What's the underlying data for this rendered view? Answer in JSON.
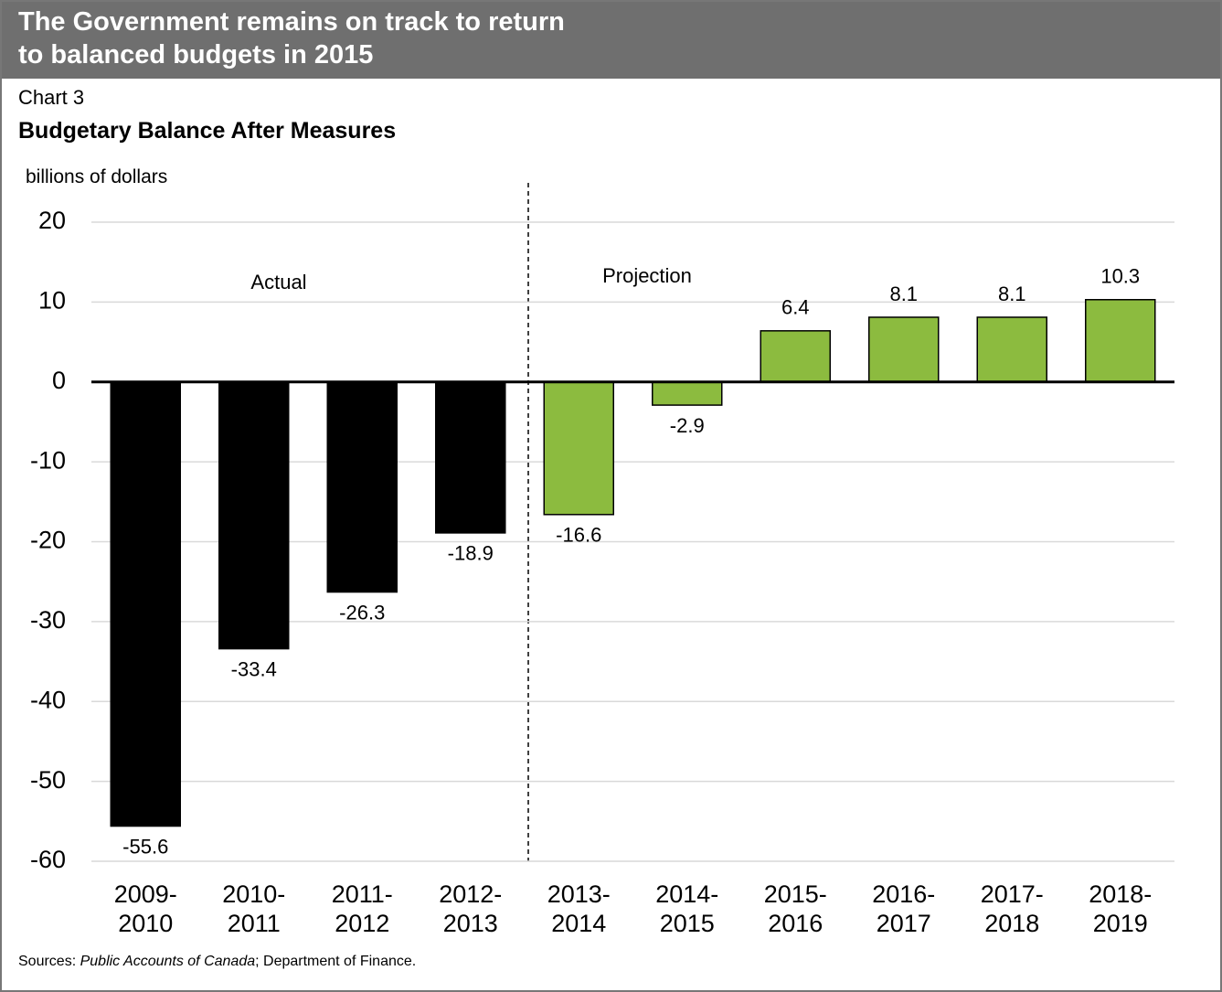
{
  "header": {
    "title_lines": [
      "The Government remains on track to return",
      "to balanced budgets in 2015"
    ]
  },
  "chart_data": {
    "type": "bar",
    "label": "Chart 3",
    "title": "Budgetary Balance After Measures",
    "y_axis_label": "billions of dollars",
    "categories": [
      "2009-\n2010",
      "2010-\n2011",
      "2011-\n2012",
      "2012-\n2013",
      "2013-\n2014",
      "2014-\n2015",
      "2015-\n2016",
      "2016-\n2017",
      "2017-\n2018",
      "2018-\n2019"
    ],
    "values": [
      -55.6,
      -33.4,
      -26.3,
      -18.9,
      -16.6,
      -2.9,
      6.4,
      8.1,
      8.1,
      10.3
    ],
    "colors": [
      "#000000",
      "#000000",
      "#000000",
      "#000000",
      "#8cbb3f",
      "#8cbb3f",
      "#8cbb3f",
      "#8cbb3f",
      "#8cbb3f",
      "#8cbb3f"
    ],
    "annotations": [
      "Actual",
      "Projection"
    ],
    "ylim": [
      -60,
      20
    ],
    "yticks": [
      -60,
      -50,
      -40,
      -30,
      -20,
      -10,
      0,
      10,
      20
    ],
    "grid": true,
    "source": [
      "Sources: ",
      "Public Accounts of Canada",
      "; Department of Finance."
    ]
  }
}
